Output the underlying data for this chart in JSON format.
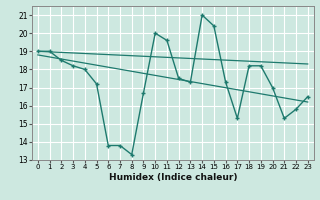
{
  "xlabel": "Humidex (Indice chaleur)",
  "ylabel": "",
  "xlim": [
    -0.5,
    23.5
  ],
  "ylim": [
    13,
    21.5
  ],
  "yticks": [
    13,
    14,
    15,
    16,
    17,
    18,
    19,
    20,
    21
  ],
  "xticks": [
    0,
    1,
    2,
    3,
    4,
    5,
    6,
    7,
    8,
    9,
    10,
    11,
    12,
    13,
    14,
    15,
    16,
    17,
    18,
    19,
    20,
    21,
    22,
    23
  ],
  "bg_color": "#cde8e0",
  "line_color": "#1e7a6e",
  "grid_color": "#ffffff",
  "line1_x": [
    0,
    1,
    2,
    3,
    4,
    5,
    6,
    7,
    8,
    9,
    10,
    11,
    12,
    13,
    14,
    15,
    16,
    17,
    18,
    19,
    20,
    21,
    22,
    23
  ],
  "line1_y": [
    19.0,
    19.0,
    18.5,
    18.2,
    18.0,
    17.2,
    13.8,
    13.8,
    13.3,
    16.7,
    20.0,
    19.6,
    17.5,
    17.3,
    21.0,
    20.4,
    17.3,
    15.3,
    18.2,
    18.2,
    17.0,
    15.3,
    15.8,
    16.5
  ],
  "line2_x": [
    0,
    23
  ],
  "line2_y": [
    19.0,
    18.3
  ],
  "line3_x": [
    0,
    23
  ],
  "line3_y": [
    18.8,
    16.2
  ]
}
